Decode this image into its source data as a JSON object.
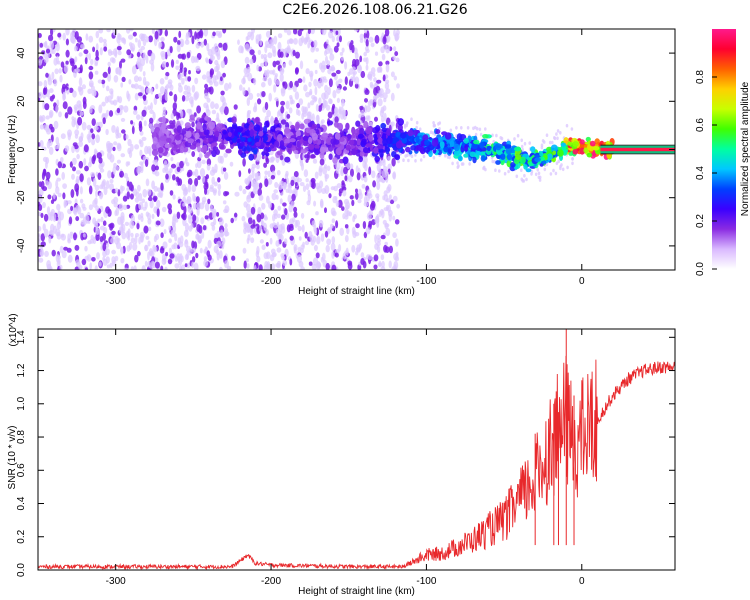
{
  "title": "C2E6.2026.108.06.21.G26",
  "chart_data": [
    {
      "type": "heatmap",
      "xlabel": "Height of straight line (km)",
      "ylabel": "Frequency (Hz)",
      "xlim": [
        -350,
        60
      ],
      "ylim": [
        -50,
        50
      ],
      "xticks": [
        -300,
        -200,
        -100,
        0
      ],
      "yticks": [
        -40,
        -20,
        0,
        20,
        40
      ],
      "noise_region_x": [
        -350,
        -118
      ],
      "signal_track": {
        "x": [
          -270,
          -240,
          -215,
          -190,
          -160,
          -130,
          -110,
          -90,
          -70,
          -55,
          -42,
          -35,
          -28,
          -18,
          -10,
          -2,
          5,
          12,
          60
        ],
        "freq": [
          5,
          6,
          5,
          4,
          3,
          3,
          4,
          2,
          1,
          0,
          -3,
          -5,
          -4,
          -2,
          1,
          2,
          1,
          0,
          0
        ],
        "amplitude": [
          0.15,
          0.2,
          0.3,
          0.2,
          0.2,
          0.25,
          0.35,
          0.4,
          0.45,
          0.5,
          0.55,
          0.55,
          0.5,
          0.55,
          0.8,
          0.9,
          0.95,
          1.0,
          1.0
        ]
      },
      "grid": false
    },
    {
      "type": "line",
      "xlabel": "Height of straight line (km)",
      "ylabel": "SNR (10 * v/v)",
      "ylabel_multiplier": "(x10^4)",
      "xlim": [
        -350,
        60
      ],
      "ylim": [
        0,
        1.45
      ],
      "xticks": [
        -300,
        -200,
        -100,
        0
      ],
      "yticks": [
        0.0,
        0.2,
        0.4,
        0.6,
        0.8,
        1.0,
        1.2,
        1.4
      ],
      "series": [
        {
          "color": "#e8282b",
          "x": [
            -350,
            -300,
            -250,
            -225,
            -215,
            -210,
            -200,
            -150,
            -115,
            -100,
            -90,
            -80,
            -70,
            -60,
            -50,
            -40,
            -30,
            -20,
            -10,
            -5,
            0,
            10,
            20,
            30,
            40,
            50,
            60
          ],
          "y": [
            0.02,
            0.02,
            0.02,
            0.02,
            0.09,
            0.04,
            0.03,
            0.02,
            0.02,
            0.09,
            0.1,
            0.14,
            0.18,
            0.24,
            0.3,
            0.42,
            0.55,
            0.75,
            0.9,
            0.75,
            0.8,
            0.9,
            1.05,
            1.15,
            1.2,
            1.22,
            1.22
          ],
          "spikes": [
            [
              -30,
              0.82
            ],
            [
              -18,
              1.0
            ],
            [
              -15,
              0.95
            ],
            [
              -10,
              1.45
            ],
            [
              -5,
              1.05
            ]
          ]
        }
      ],
      "grid": false
    }
  ],
  "colorbar": {
    "label": "Normalized spectral amplitude",
    "range": [
      0,
      1
    ],
    "ticks": [
      "0.0",
      "0.2",
      "0.4",
      "0.6",
      "0.8"
    ],
    "stops": [
      "#ffffff",
      "#d9b8ff",
      "#8a2be2",
      "#3a00ff",
      "#0040ff",
      "#00c8ff",
      "#00ffa0",
      "#40ff00",
      "#c8ff00",
      "#ffd000",
      "#ff6000",
      "#ff0030",
      "#ff1a8c"
    ]
  },
  "colors": {
    "frame": "#000000",
    "line": "#e8282b",
    "dot_light": "#dcc8ff",
    "dot_dark": "#7a1fe6"
  }
}
